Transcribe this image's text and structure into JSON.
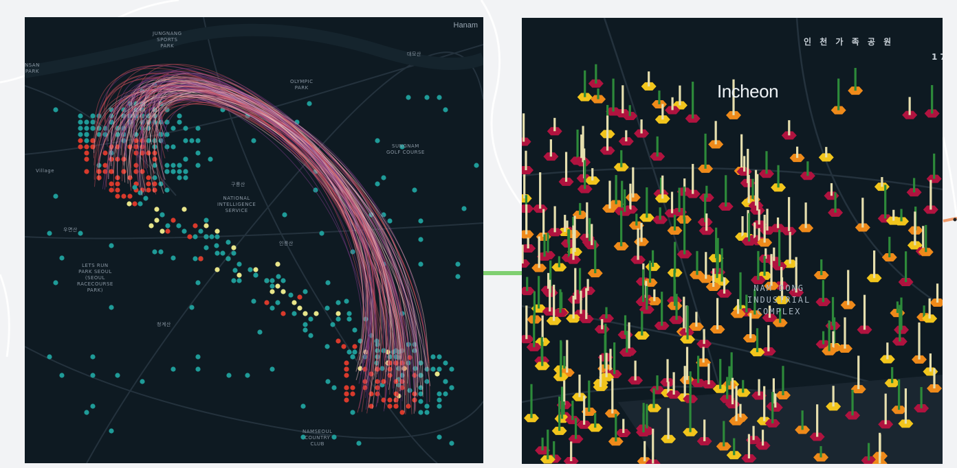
{
  "left_map": {
    "place_labels": {
      "hanam": "Hanam",
      "jungnang": "JUNGNANG\nSPORTS\nPARK",
      "olympic": "OLYMPIC\nPARK",
      "seungnam": "SUNGNAM\nGOLF COURSE",
      "national": "NATIONAL\nINTELLIGENCE\nSERVICE",
      "racecourse": "LETS RUN\nPARK SEOUL\n(SEOUL\nRACECOURSE\nPARK)",
      "namseoul": "NAMSEOUL\nCOUNTRY\nCLUB",
      "village": "Village",
      "nsan": "NSAN\nPARK",
      "gu1": "구룡산",
      "gu2": "청계산",
      "gu3": "우면산",
      "gu4": "인릉산",
      "gu5": "대모산"
    }
  },
  "right_map": {
    "place_labels": {
      "incheon": "Incheon",
      "park_ko": "인 천 가 족 공 원",
      "namdong": "NAM DONG\nINDUSTRIAL\nCOMPLEX",
      "edge_num": "17"
    }
  },
  "colors": {
    "map_bg": "#0e1a22",
    "road": "#24323d",
    "hex_teal": "#1f9b98",
    "hex_red": "#d83a2c",
    "hex_yellow": "#e8e58a",
    "arc_pink": "#f2b9c0",
    "arc_purple": "#7b3b86",
    "hex_crimson": "#b0133f",
    "hex_orange": "#ef8a1a",
    "hex_gold": "#f2c51c",
    "bar_green": "#2d8a3a",
    "bar_cream": "#e6dfae"
  }
}
